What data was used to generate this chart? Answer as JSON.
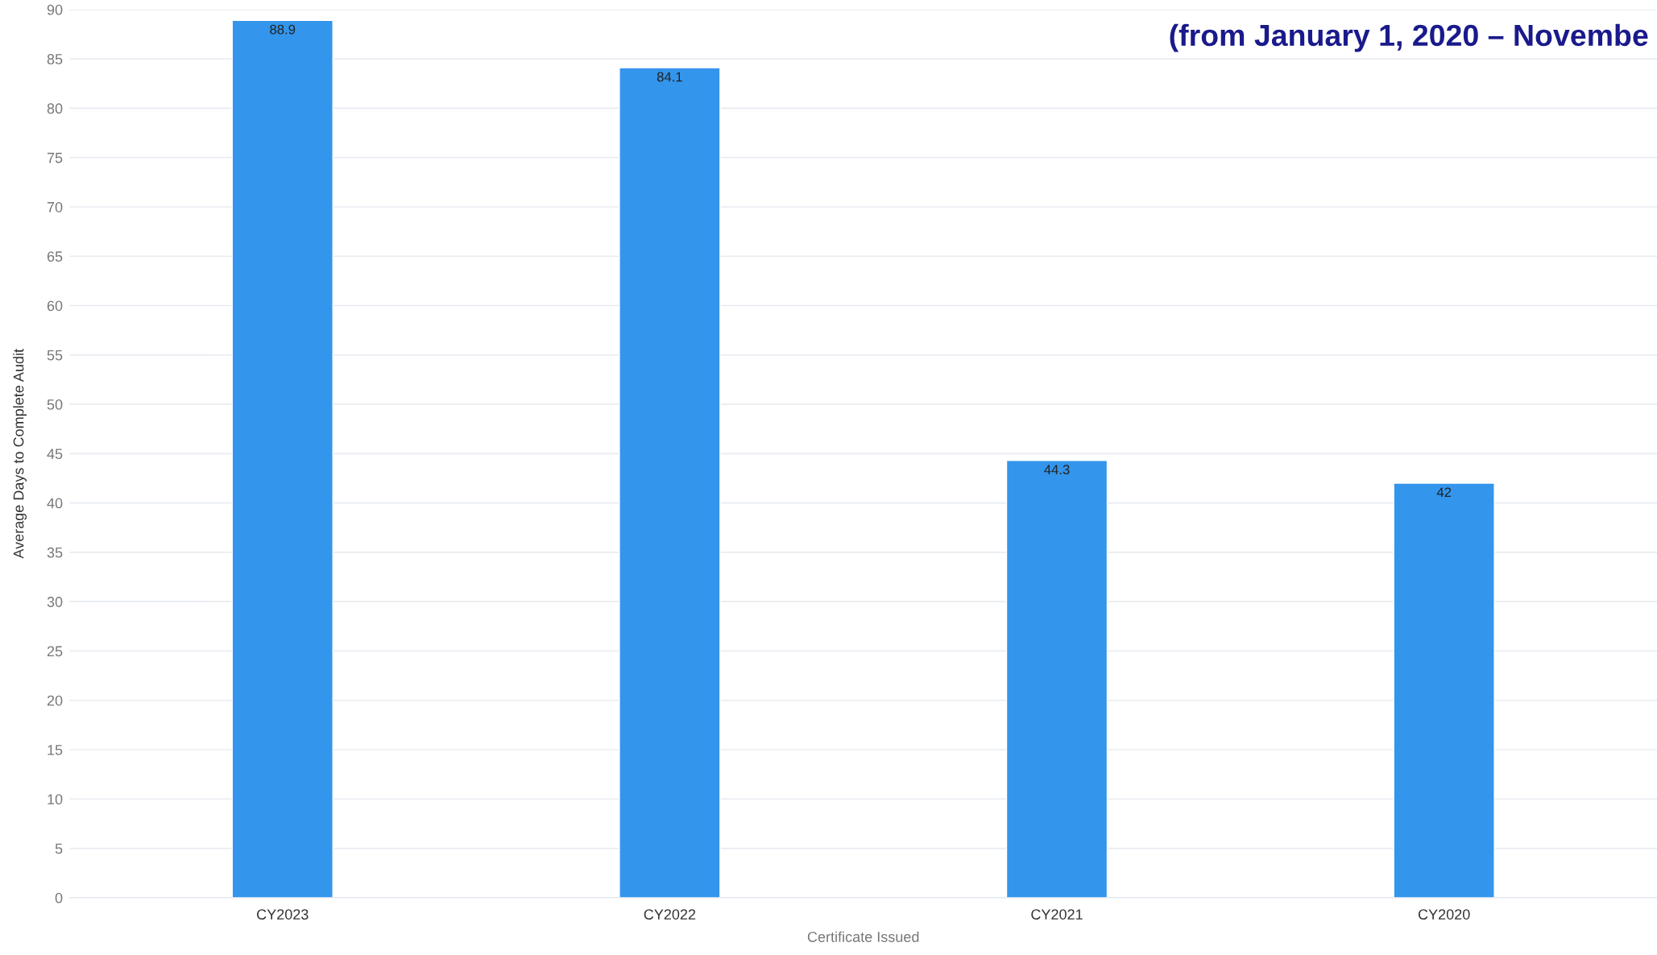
{
  "chart_data": {
    "type": "bar",
    "subtitle": "(from January 1, 2020 – Novembe",
    "categories": [
      "CY2023",
      "CY2022",
      "CY2021",
      "CY2020"
    ],
    "values": [
      88.9,
      84.1,
      44.3,
      42
    ],
    "color": "#3395eb",
    "xlabel": "Certificate Issued",
    "ylabel": "Average Days to Complete Audit",
    "ylim": [
      0,
      90
    ],
    "yticks": [
      0,
      5,
      10,
      15,
      20,
      25,
      30,
      35,
      40,
      45,
      50,
      55,
      60,
      65,
      70,
      75,
      80,
      85,
      90
    ],
    "grid": "y",
    "data_labels": true
  }
}
